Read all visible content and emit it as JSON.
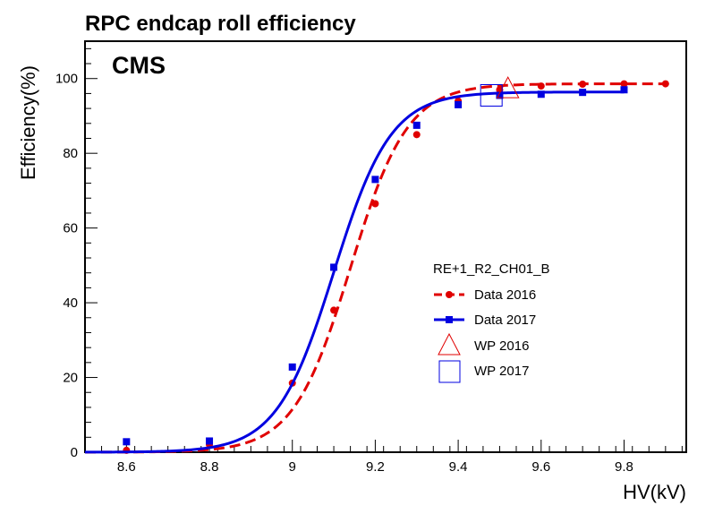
{
  "title": "RPC endcap roll efficiency",
  "experiment_label": "CMS",
  "colors": {
    "data2016": "#e00000",
    "data2017": "#0000e0",
    "axis": "#000000"
  },
  "chart_data": {
    "type": "line",
    "title": "RPC endcap roll efficiency",
    "xlabel": "HV(kV)",
    "ylabel": "Efficiency(%)",
    "xlim": [
      8.5,
      9.95
    ],
    "ylim": [
      0,
      110
    ],
    "x_ticks": [
      8.6,
      8.8,
      9,
      9.2,
      9.4,
      9.6,
      9.8
    ],
    "x_tick_labels": [
      "8.6",
      "8.8",
      "9",
      "9.2",
      "9.4",
      "9.6",
      "9.8"
    ],
    "y_ticks": [
      0,
      20,
      40,
      60,
      80,
      100
    ],
    "y_tick_labels": [
      "0",
      "20",
      "40",
      "60",
      "80",
      "100"
    ],
    "legend_header": "RE+1_R2_CH01_B",
    "legend_position": "center-right",
    "series": [
      {
        "name": "Data 2016",
        "x": [
          8.6,
          8.8,
          9.0,
          9.1,
          9.2,
          9.3,
          9.4,
          9.5,
          9.6,
          9.7,
          9.8,
          9.9
        ],
        "values": [
          0.5,
          2.0,
          18.5,
          38.0,
          66.5,
          85.0,
          94.0,
          97.0,
          98.0,
          98.5,
          98.6,
          98.6
        ],
        "fit": {
          "plateau": 98.6,
          "slope": 14.5,
          "hv50": 9.14
        }
      },
      {
        "name": "Data 2017",
        "x": [
          8.6,
          8.8,
          9.0,
          9.1,
          9.2,
          9.3,
          9.4,
          9.5,
          9.6,
          9.7,
          9.8
        ],
        "values": [
          2.8,
          3.0,
          22.8,
          49.5,
          73.0,
          87.5,
          93.0,
          95.5,
          95.8,
          96.3,
          97.0
        ],
        "fit": {
          "plateau": 96.4,
          "slope": 14.5,
          "hv50": 9.1
        }
      }
    ],
    "working_points": [
      {
        "name": "WP 2016",
        "x": 9.52,
        "y": 97.5,
        "marker": "triangle"
      },
      {
        "name": "WP 2017",
        "x": 9.48,
        "y": 95.5,
        "marker": "square"
      }
    ]
  }
}
